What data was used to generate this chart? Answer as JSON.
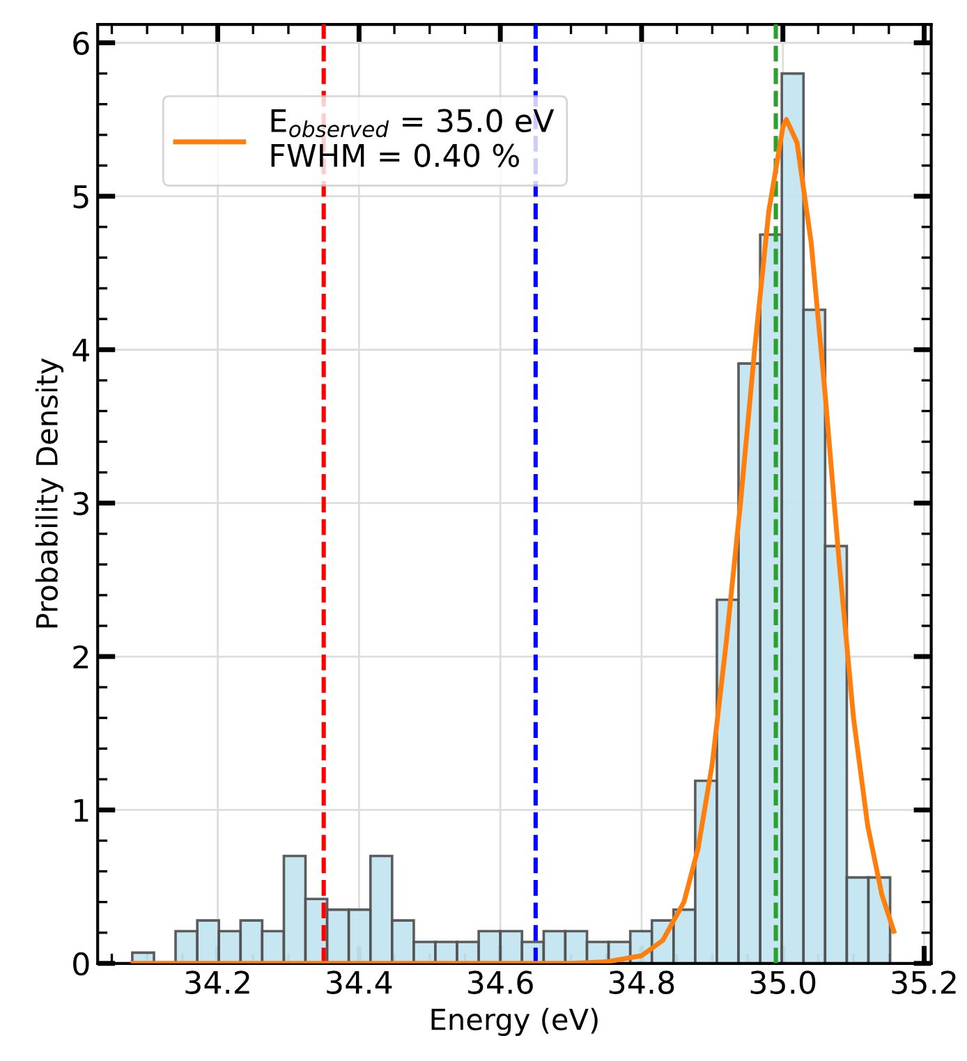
{
  "chart_data": {
    "type": "histogram",
    "xlabel": "Energy (eV)",
    "ylabel": "Probability Density",
    "bins": [
      34.079,
      34.1097,
      34.1403,
      34.171,
      34.2016,
      34.2323,
      34.2629,
      34.2936,
      34.3242,
      34.3549,
      34.3855,
      34.4162,
      34.4468,
      34.4775,
      34.5081,
      34.5388,
      34.5694,
      34.6001,
      34.6307,
      34.6614,
      34.692,
      34.7227,
      34.7533,
      34.784,
      34.8146,
      34.8453,
      34.8759,
      34.9066,
      34.9372,
      34.9679,
      34.9985,
      35.0292,
      35.0598,
      35.0905,
      35.1211,
      35.1518
    ],
    "values": [
      0.07,
      0,
      0.21,
      0.28,
      0.21,
      0.28,
      0.21,
      0.7,
      0.42,
      0.35,
      0.35,
      0.7,
      0.28,
      0.14,
      0.14,
      0.14,
      0.21,
      0.21,
      0.14,
      0.21,
      0.21,
      0.14,
      0.14,
      0.21,
      0.28,
      0.35,
      1.19,
      2.37,
      3.91,
      4.75,
      5.8,
      4.26,
      2.72,
      0.56,
      0.56
    ],
    "color": "#c3e5f2",
    "series": [
      {
        "type": "line",
        "name": "E$_{observed}$ = 35.0 eV\nFWHM = 0.40 %",
        "color": "#ff7f0e",
        "x": [
          34.08,
          34.7,
          34.75,
          34.8,
          34.83,
          34.86,
          34.88,
          34.9,
          34.92,
          34.94,
          34.96,
          34.98,
          35.0,
          35.005,
          35.02,
          35.04,
          35.06,
          35.08,
          35.1,
          35.12,
          35.14,
          35.157
        ],
        "values": [
          0,
          0,
          0.01,
          0.05,
          0.15,
          0.4,
          0.75,
          1.3,
          2.1,
          3.0,
          4.0,
          4.9,
          5.45,
          5.5,
          5.35,
          4.7,
          3.7,
          2.6,
          1.6,
          0.9,
          0.45,
          0.21
        ]
      }
    ],
    "ref_lines": [
      {
        "axis": "x",
        "value": 34.35,
        "color": "#ff0000",
        "line_style": "dashed"
      },
      {
        "axis": "x",
        "value": 34.65,
        "color": "#0000ff",
        "line_style": "dashed"
      },
      {
        "axis": "x",
        "value": 34.99,
        "color": "#2ca02c",
        "line_style": "dashed"
      }
    ],
    "xlim": [
      34.03,
      35.21
    ],
    "ylim": [
      0,
      6.12
    ],
    "xticks": [
      {
        "value": 34.2,
        "label": "34.2"
      },
      {
        "value": 34.4,
        "label": "34.4"
      },
      {
        "value": 34.6,
        "label": "34.6"
      },
      {
        "value": 34.8,
        "label": "34.8"
      },
      {
        "value": 35.0,
        "label": "35.0"
      },
      {
        "value": 35.2,
        "label": "35.2"
      }
    ],
    "yticks": [
      0,
      1,
      2,
      3,
      4,
      5,
      6
    ],
    "grid": true,
    "legend": "top left"
  }
}
